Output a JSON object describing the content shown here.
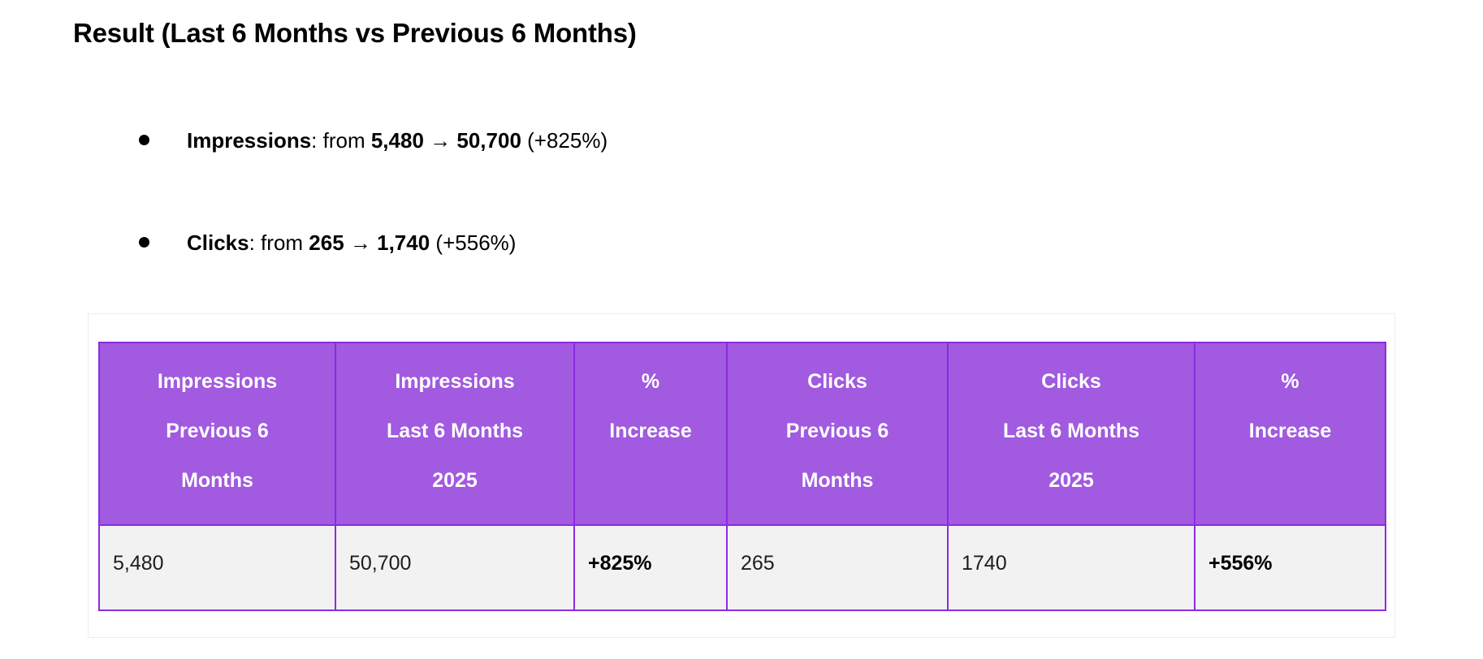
{
  "page": {
    "heading": "Result (Last 6 Months vs Previous 6 Months)"
  },
  "bullets": [
    {
      "segments": [
        {
          "text": "Impressions",
          "bold": true
        },
        {
          "text": ": from ",
          "bold": false
        },
        {
          "text": "5,480",
          "bold": true
        },
        {
          "text": " → ",
          "bold": false
        },
        {
          "text": "50,700",
          "bold": true
        },
        {
          "text": " (+825%)",
          "bold": false
        }
      ]
    },
    {
      "segments": [
        {
          "text": "Clicks",
          "bold": true
        },
        {
          "text": ": from ",
          "bold": false
        },
        {
          "text": "265",
          "bold": true
        },
        {
          "text": " → ",
          "bold": false
        },
        {
          "text": "1,740",
          "bold": true
        },
        {
          "text": " (+556%)",
          "bold": false
        }
      ]
    }
  ],
  "table": {
    "columns": [
      {
        "lines": [
          "Impressions",
          "Previous 6",
          "Months"
        ]
      },
      {
        "lines": [
          "Impressions",
          "Last 6 Months",
          "2025"
        ]
      },
      {
        "lines": [
          "%",
          "Increase"
        ]
      },
      {
        "lines": [
          "Clicks",
          "Previous 6",
          "Months"
        ]
      },
      {
        "lines": [
          "Clicks",
          "Last 6 Months",
          "2025"
        ]
      },
      {
        "lines": [
          "%",
          "Increase"
        ]
      }
    ],
    "row": [
      {
        "value": "5,480",
        "bold": false
      },
      {
        "value": "50,700",
        "bold": false
      },
      {
        "value": "+825%",
        "bold": true
      },
      {
        "value": "265",
        "bold": false
      },
      {
        "value": "1740",
        "bold": false
      },
      {
        "value": "+556%",
        "bold": true
      }
    ]
  },
  "colors": {
    "header_bg": "#a15ae0",
    "border_purple": "#8c2be2",
    "cell_bg": "#f2f2f2",
    "container_border": "#ececec"
  }
}
